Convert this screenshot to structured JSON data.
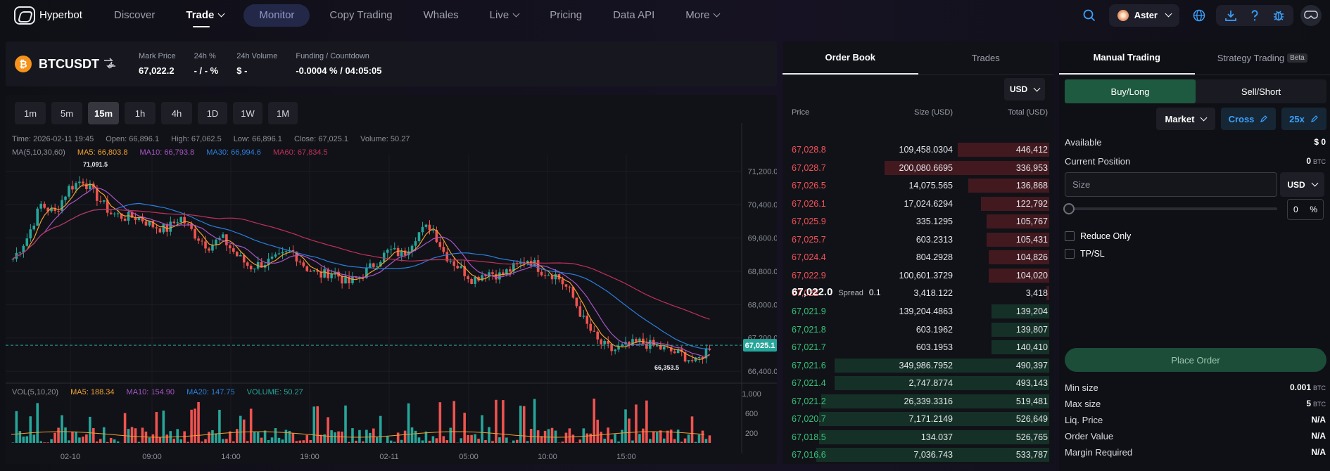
{
  "nav": {
    "brand": "Hyperbot",
    "items": [
      "Discover",
      "Trade",
      "Monitor",
      "Copy Trading",
      "Whales",
      "Live",
      "Pricing",
      "Data API",
      "More"
    ],
    "exchange": "Aster"
  },
  "ticker": {
    "symbol": "BTCUSDT",
    "coin_glyph": "₿",
    "mark_label": "Mark Price",
    "mark_value": "67,022.2",
    "change_label": "24h %",
    "change_value": "- / - %",
    "volume_label": "24h Volume",
    "volume_value": "$ -",
    "funding_label": "Funding / Countdown",
    "funding_value": "-0.0004 % / 04:05:05"
  },
  "timeframes": [
    "1m",
    "5m",
    "15m",
    "1h",
    "4h",
    "1D",
    "1W",
    "1M"
  ],
  "active_timeframe": "15m",
  "chart_info": {
    "time": "Time: 2026-02-11 19:45",
    "open": "Open: 66,896.1",
    "high": "High: 67,062.5",
    "low": "Low: 66,896.1",
    "close": "Close: 67,025.1",
    "volume": "Volume: 50.27",
    "ma_title": "MA(5,10,30,60)",
    "ma5": "MA5: 66,803.8",
    "ma10": "MA10: 66,793.8",
    "ma30": "MA30: 66,994.6",
    "ma60": "MA60: 67,834.5",
    "vol_title": "VOL(5,10,20)",
    "vma5": "MA5: 188.34",
    "vma10": "MA10: 154.90",
    "vma20": "MA20: 147.75",
    "vvol": "VOLUME: 50.27"
  },
  "chart_data": {
    "type": "candlestick",
    "price_axis": [
      "71,200.0",
      "70,400.0",
      "69,600.0",
      "68,800.0",
      "68,000.0",
      "67,200.0",
      "66,400.0"
    ],
    "ylim": [
      66200,
      71600
    ],
    "current_price": "67,025.1",
    "high_mark": "71,091.5",
    "low_mark": "66,353.5",
    "volume_axis": [
      "1,000",
      "600",
      "200"
    ],
    "x_ticks": [
      "02-10",
      "09:00",
      "14:00",
      "19:00",
      "02-11",
      "05:00",
      "10:00",
      "15:00"
    ],
    "close_path": [
      69100,
      69600,
      70400,
      70200,
      70800,
      71000,
      70600,
      70200,
      70100,
      70100,
      69900,
      69800,
      70100,
      69700,
      69400,
      69600,
      69200,
      68900,
      69000,
      69100,
      69300,
      68900,
      68700,
      68800,
      68500,
      68700,
      69000,
      69300,
      69200,
      69700,
      69900,
      69200,
      68900,
      68600,
      68800,
      68700,
      68900,
      69100,
      68800,
      68700,
      68300,
      67600,
      67100,
      66900,
      67000,
      67100,
      67000,
      66900,
      66800,
      66600,
      67000
    ]
  },
  "order_book": {
    "tab_book": "Order Book",
    "tab_trades": "Trades",
    "currency": "USD",
    "col_price": "Price",
    "col_size": "Size (USD)",
    "col_total": "Total (USD)",
    "asks": [
      {
        "price": "67,028.8",
        "size": "109,458.0304",
        "total": "446,412",
        "depth": 0.35
      },
      {
        "price": "67,028.7",
        "size": "200,080.6695",
        "total": "336,953",
        "depth": 0.63
      },
      {
        "price": "67,026.5",
        "size": "14,075.565",
        "total": "136,868",
        "depth": 0.31
      },
      {
        "price": "67,026.1",
        "size": "17,024.6294",
        "total": "122,792",
        "depth": 0.26
      },
      {
        "price": "67,025.9",
        "size": "335.1295",
        "total": "105,767",
        "depth": 0.24
      },
      {
        "price": "67,025.7",
        "size": "603.2313",
        "total": "105,431",
        "depth": 0.24
      },
      {
        "price": "67,024.4",
        "size": "804.2928",
        "total": "104,826",
        "depth": 0.23
      },
      {
        "price": "67,022.9",
        "size": "100,601.3729",
        "total": "104,020",
        "depth": 0.23
      },
      {
        "price": "67,022",
        "size": "3,418.122",
        "total": "3,418",
        "depth": 0.01
      }
    ],
    "spread_price": "67,022.0",
    "spread_label": "Spread",
    "spread_value": "0.1",
    "bids": [
      {
        "price": "67,021.9",
        "size": "139,204.4863",
        "total": "139,204",
        "depth": 0.22
      },
      {
        "price": "67,021.8",
        "size": "603.1962",
        "total": "139,807",
        "depth": 0.22
      },
      {
        "price": "67,021.7",
        "size": "603.1953",
        "total": "140,410",
        "depth": 0.22
      },
      {
        "price": "67,021.6",
        "size": "349,986.7952",
        "total": "490,397",
        "depth": 0.82
      },
      {
        "price": "67,021.4",
        "size": "2,747.8774",
        "total": "493,143",
        "depth": 0.82
      },
      {
        "price": "67,021.2",
        "size": "26,339.3316",
        "total": "519,481",
        "depth": 0.87
      },
      {
        "price": "67,020.7",
        "size": "7,171.2149",
        "total": "526,649",
        "depth": 0.88
      },
      {
        "price": "67,018.5",
        "size": "134.037",
        "total": "526,765",
        "depth": 0.88
      },
      {
        "price": "67,016.6",
        "size": "7,036.743",
        "total": "533,787",
        "depth": 0.89
      }
    ]
  },
  "trade_panel": {
    "tab_manual": "Manual Trading",
    "tab_strategy": "Strategy Trading",
    "beta": "Beta",
    "buy": "Buy/Long",
    "sell": "Sell/Short",
    "order_type": "Market",
    "margin_mode": "Cross",
    "leverage": "25x",
    "available_label": "Available",
    "available_value": "$ 0",
    "position_label": "Current Position",
    "position_value": "0",
    "position_unit": "BTC",
    "size_placeholder": "Size",
    "size_currency": "USD",
    "percent_value": "0",
    "percent_sign": "%",
    "reduce_only": "Reduce Only",
    "tpsl": "TP/SL",
    "place_order": "Place Order",
    "min_label": "Min size",
    "min_value": "0.001",
    "min_unit": "BTC",
    "max_label": "Max size",
    "max_value": "5",
    "max_unit": "BTC",
    "liq_label": "Liq. Price",
    "liq_value": "N/A",
    "ov_label": "Order Value",
    "ov_value": "N/A",
    "mr_label": "Margin Required",
    "mr_value": "N/A"
  },
  "colors": {
    "up": "#26a69a",
    "down": "#ef5350",
    "ma5": "#f0a030",
    "ma10": "#a855c8",
    "ma30": "#2a7fe0",
    "ma60": "#c0305a"
  }
}
